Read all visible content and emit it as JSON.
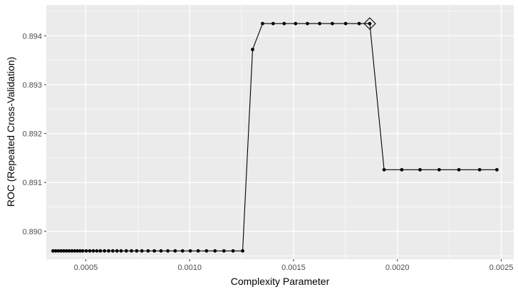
{
  "chart_data": {
    "type": "line",
    "title": "",
    "xlabel": "Complexity Parameter",
    "ylabel": "ROC (Repeated Cross-Validation)",
    "xlim": [
      0.00031,
      0.00256
    ],
    "ylim": [
      0.88943,
      0.89463
    ],
    "grid": true,
    "x_ticks": [
      0.0005,
      0.001,
      0.0015,
      0.002,
      0.0025
    ],
    "x_tick_labels": [
      "0.0005",
      "0.0010",
      "0.0015",
      "0.0020",
      "0.0025"
    ],
    "y_ticks": [
      0.89,
      0.891,
      0.892,
      0.893,
      0.894
    ],
    "y_tick_labels": [
      "0.890",
      "0.891",
      "0.892",
      "0.893",
      "0.894"
    ],
    "series": [
      {
        "x": [
          0.000342,
          0.000355,
          0.000368,
          0.000381,
          0.000394,
          0.000407,
          0.00042,
          0.000433,
          0.000446,
          0.000459,
          0.000472,
          0.000485,
          0.000502,
          0.000519,
          0.000536,
          0.000553,
          0.00057,
          0.00059,
          0.00061,
          0.00063,
          0.00065,
          0.00067,
          0.000695,
          0.00072,
          0.000745,
          0.00077,
          0.0008,
          0.00083,
          0.000862,
          0.000895,
          0.00093,
          0.000966,
          0.001003,
          0.001041,
          0.001081,
          0.001122,
          0.001165,
          0.001209,
          0.001255,
          0.001303,
          0.001351,
          0.001402,
          0.001455,
          0.00151,
          0.001567,
          0.001626,
          0.001687,
          0.001751,
          0.001816,
          0.001867,
          0.001936,
          0.002021,
          0.002109,
          0.002201,
          0.002296,
          0.002396,
          0.002479
        ],
        "y": [
          0.8896,
          0.8896,
          0.8896,
          0.8896,
          0.8896,
          0.8896,
          0.8896,
          0.8896,
          0.8896,
          0.8896,
          0.8896,
          0.8896,
          0.8896,
          0.8896,
          0.8896,
          0.8896,
          0.8896,
          0.8896,
          0.8896,
          0.8896,
          0.8896,
          0.8896,
          0.8896,
          0.8896,
          0.8896,
          0.8896,
          0.8896,
          0.8896,
          0.8896,
          0.8896,
          0.8896,
          0.8896,
          0.8896,
          0.8896,
          0.8896,
          0.8896,
          0.8896,
          0.8896,
          0.8896,
          0.89372,
          0.89425,
          0.89425,
          0.89425,
          0.89425,
          0.89425,
          0.89425,
          0.89425,
          0.89425,
          0.89425,
          0.89425,
          0.89126,
          0.89126,
          0.89126,
          0.89126,
          0.89126,
          0.89126,
          0.89126
        ]
      }
    ],
    "highlight": {
      "x": 0.001867,
      "y": 0.89425,
      "marker": "diamond"
    },
    "colors": {
      "panel": "#ebebeb",
      "grid": "#ffffff",
      "line": "#000000"
    }
  }
}
